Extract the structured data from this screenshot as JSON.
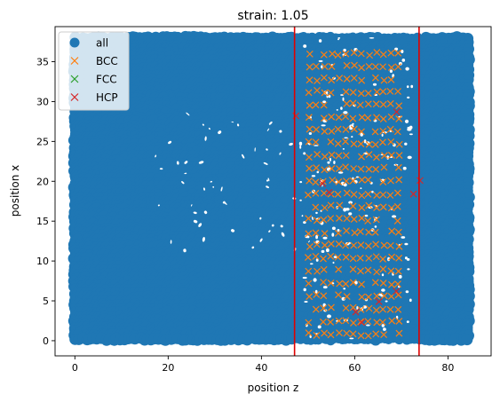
{
  "chart_data": {
    "type": "scatter",
    "title": "strain: 1.05",
    "xlabel": "position z",
    "ylabel": "position x",
    "xlim": [
      -4.25,
      89.25
    ],
    "ylim": [
      -1.9,
      39.4
    ],
    "x_ticks": [
      0,
      20,
      40,
      60,
      80
    ],
    "y_ticks": [
      0,
      5,
      10,
      15,
      20,
      25,
      30,
      35
    ],
    "x_tick_labels": [
      "0",
      "20",
      "40",
      "60",
      "80"
    ],
    "y_tick_labels": [
      "0",
      "5",
      "10",
      "15",
      "20",
      "25",
      "30",
      "35"
    ],
    "grid": false,
    "legend_position": "top-left",
    "bulk_region": {
      "z_range": [
        0,
        85
      ],
      "x_range": [
        0,
        38
      ]
    },
    "vertical_lines": [
      {
        "x": 47.1,
        "color": "#e00000"
      },
      {
        "x": 73.8,
        "color": "#e00000"
      }
    ],
    "bcc_lattice": {
      "z_start": 50.2,
      "z_end": 69.6,
      "z_step": 1.6,
      "x_start": 0.8,
      "x_end": 37.4,
      "x_step": 1.6
    },
    "series": [
      {
        "name": "all",
        "marker": "o",
        "color": "#1f77b4"
      },
      {
        "name": "BCC",
        "marker": "x",
        "color": "#ff7f0e"
      },
      {
        "name": "FCC",
        "marker": "x",
        "color": "#2ca02c"
      },
      {
        "name": "HCP",
        "marker": "x",
        "color": "#d62728",
        "points": [
          [
            54.5,
            18.6
          ],
          [
            53.1,
            19.7
          ],
          [
            60.2,
            3.6
          ],
          [
            61.5,
            2.3
          ],
          [
            65.2,
            4.9
          ],
          [
            68.9,
            6.2
          ],
          [
            72.6,
            18.4
          ],
          [
            74.0,
            20.1
          ],
          [
            47.4,
            28.2
          ],
          [
            69.0,
            28.7
          ]
        ]
      }
    ]
  }
}
